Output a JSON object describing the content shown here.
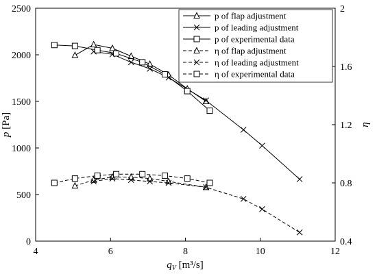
{
  "chart_data": {
    "type": "line",
    "x_axis": {
      "label_main": "q",
      "label_sub": "V",
      "label_unit": " [m³/s]",
      "range": [
        4,
        12
      ],
      "ticks": [
        4,
        6,
        8,
        10,
        12
      ]
    },
    "y_left": {
      "label_main": "p",
      "label_unit": " [Pa]",
      "range": [
        0,
        2500
      ],
      "ticks": [
        0,
        500,
        1000,
        1500,
        2000,
        2500
      ]
    },
    "y_right": {
      "label": "η",
      "range": [
        0.4,
        2.0
      ],
      "ticks": [
        0.4,
        0.8,
        1.2,
        1.6,
        2.0
      ],
      "tick_labels": [
        "0.4",
        "0.8",
        "1.2",
        "1.6",
        "2"
      ]
    },
    "legend": {
      "position": "top-right",
      "entries": [
        "p of flap adjustment",
        "p of leading adjustment",
        "p of experimental data",
        "η of flap adjustment",
        "η of leading adjustment",
        "η of experimental data"
      ]
    },
    "series": [
      {
        "name": "p of flap adjustment",
        "axis": "left",
        "marker": "triangle",
        "dash": false,
        "points": [
          [
            5.05,
            1995
          ],
          [
            5.55,
            2110
          ],
          [
            6.05,
            2070
          ],
          [
            6.55,
            1985
          ],
          [
            7.05,
            1900
          ],
          [
            7.55,
            1785
          ],
          [
            8.05,
            1635
          ],
          [
            8.55,
            1500
          ]
        ]
      },
      {
        "name": "p of leading adjustment",
        "axis": "left",
        "marker": "x",
        "dash": false,
        "points": [
          [
            5.55,
            2035
          ],
          [
            6.05,
            2005
          ],
          [
            6.55,
            1920
          ],
          [
            7.05,
            1850
          ],
          [
            7.55,
            1755
          ],
          [
            8.55,
            1510
          ],
          [
            9.55,
            1195
          ],
          [
            10.05,
            1025
          ],
          [
            11.05,
            665
          ]
        ]
      },
      {
        "name": "p of experimental data",
        "axis": "left",
        "marker": "square",
        "dash": false,
        "points": [
          [
            4.5,
            2105
          ],
          [
            5.05,
            2095
          ],
          [
            5.65,
            2050
          ],
          [
            6.15,
            2015
          ],
          [
            6.85,
            1920
          ],
          [
            7.45,
            1790
          ],
          [
            8.05,
            1610
          ],
          [
            8.65,
            1400
          ]
        ]
      },
      {
        "name": "η of flap adjustment",
        "axis": "right",
        "marker": "triangle",
        "dash": true,
        "points": [
          [
            5.05,
            0.78
          ],
          [
            5.55,
            0.82
          ],
          [
            6.05,
            0.84
          ],
          [
            6.55,
            0.84
          ],
          [
            7.05,
            0.83
          ],
          [
            7.55,
            0.81
          ],
          [
            8.55,
            0.77
          ]
        ]
      },
      {
        "name": "η of leading adjustment",
        "axis": "right",
        "marker": "x",
        "dash": true,
        "points": [
          [
            5.55,
            0.81
          ],
          [
            6.05,
            0.83
          ],
          [
            6.55,
            0.82
          ],
          [
            7.05,
            0.81
          ],
          [
            7.55,
            0.8
          ],
          [
            8.55,
            0.77
          ],
          [
            9.55,
            0.69
          ],
          [
            10.05,
            0.62
          ],
          [
            11.05,
            0.46
          ]
        ]
      },
      {
        "name": "η of experimental data",
        "axis": "right",
        "marker": "square",
        "dash": true,
        "points": [
          [
            4.5,
            0.8
          ],
          [
            5.05,
            0.83
          ],
          [
            5.65,
            0.85
          ],
          [
            6.15,
            0.86
          ],
          [
            6.85,
            0.86
          ],
          [
            7.45,
            0.85
          ],
          [
            8.05,
            0.83
          ],
          [
            8.65,
            0.8
          ]
        ]
      }
    ]
  }
}
